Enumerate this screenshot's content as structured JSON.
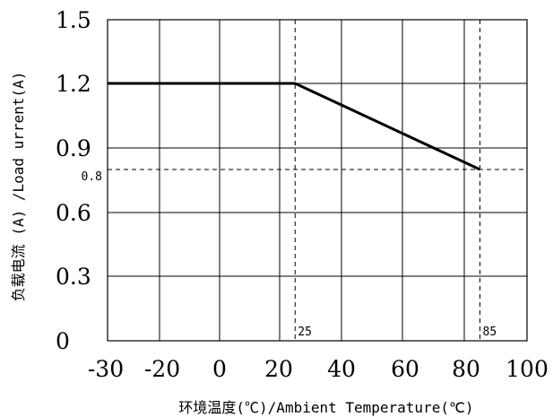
{
  "chart_data": {
    "type": "line",
    "xlabel": "环境温度(℃)/Ambient Temperature(℃)",
    "ylabel": "负载电流 (A) /Load urrent(A)",
    "xlim": [
      -30,
      100
    ],
    "ylim": [
      0,
      1.5
    ],
    "x_ticks": [
      "-30",
      "-20",
      "0",
      "20",
      "40",
      "60",
      "80",
      "100"
    ],
    "x_tick_values": [
      -30,
      -20,
      0,
      20,
      40,
      60,
      80,
      100
    ],
    "y_ticks": [
      "0",
      "0.3",
      "0.6",
      "0.9",
      "1.2",
      "1.5"
    ],
    "y_tick_values": [
      0,
      0.3,
      0.6,
      0.9,
      1.2,
      1.5
    ],
    "grid": true,
    "series": [
      {
        "x": [
          -30,
          25,
          85
        ],
        "y": [
          1.2,
          1.2,
          0.8
        ]
      }
    ],
    "reference_lines": [
      {
        "axis": "x",
        "value": 25,
        "label": "25"
      },
      {
        "axis": "x",
        "value": 85,
        "label": "85"
      },
      {
        "axis": "y",
        "value": 0.8,
        "label": "0.8"
      }
    ]
  }
}
